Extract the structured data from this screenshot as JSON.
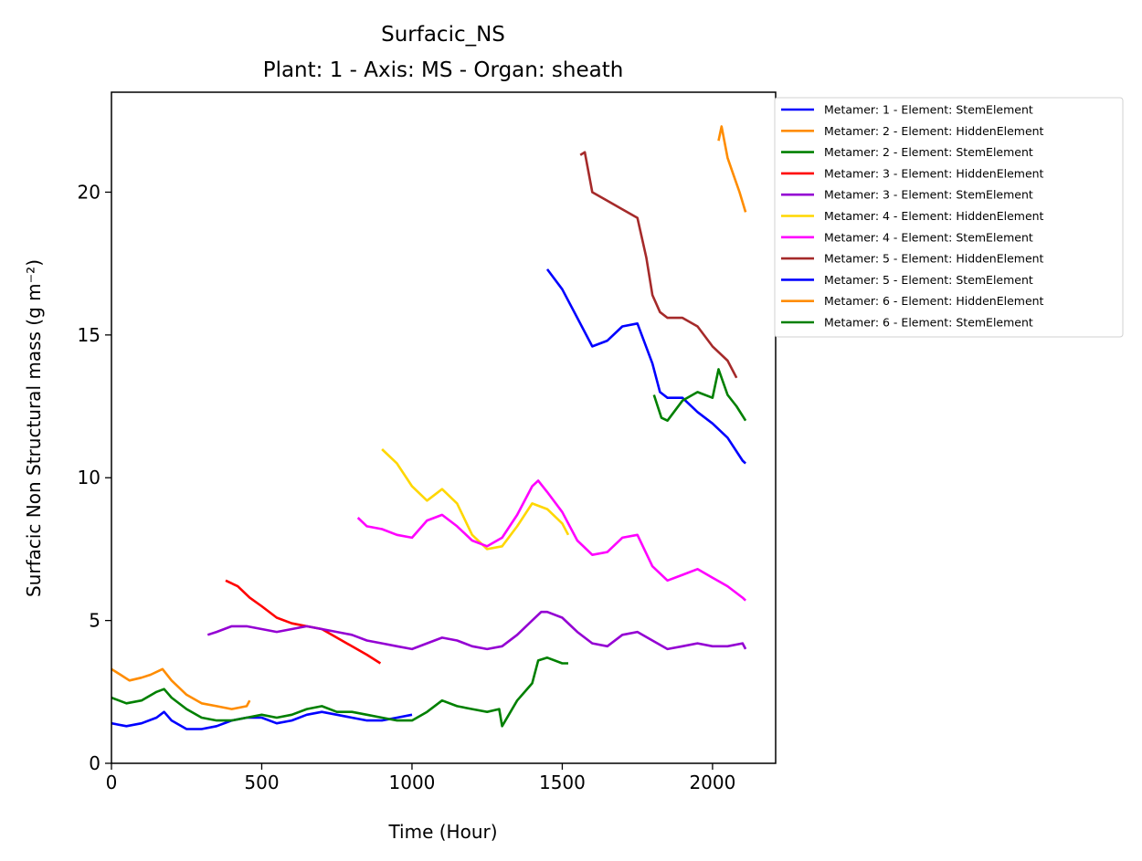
{
  "chart_data": {
    "type": "line",
    "title": "Surfacic_NS",
    "subtitle": "Plant: 1 - Axis: MS - Organ: sheath",
    "xlabel": "Time (Hour)",
    "ylabel": "Surfacic Non Structural mass (g m⁻²)",
    "xlim": [
      0,
      2210
    ],
    "ylim": [
      0,
      23.5
    ],
    "xticks": [
      0,
      500,
      1000,
      1500,
      2000
    ],
    "yticks": [
      0,
      5,
      10,
      15,
      20
    ],
    "grid": false,
    "legend_position": "outside-top-right",
    "series": [
      {
        "name": "Metamer: 1 - Element: StemElement",
        "color": "#0000ff",
        "x": [
          0,
          50,
          100,
          150,
          175,
          200,
          250,
          300,
          350,
          400,
          450,
          500,
          550,
          600,
          650,
          700,
          750,
          800,
          850,
          900,
          950,
          1000
        ],
        "y": [
          1.4,
          1.3,
          1.4,
          1.6,
          1.8,
          1.5,
          1.2,
          1.2,
          1.3,
          1.5,
          1.6,
          1.6,
          1.4,
          1.5,
          1.7,
          1.8,
          1.7,
          1.6,
          1.5,
          1.5,
          1.6,
          1.7
        ]
      },
      {
        "name": "Metamer: 2 - Element: HiddenElement",
        "color": "#ff8c00",
        "x": [
          0,
          30,
          60,
          100,
          130,
          170,
          200,
          250,
          300,
          350,
          400,
          450,
          460
        ],
        "y": [
          3.3,
          3.1,
          2.9,
          3.0,
          3.1,
          3.3,
          2.9,
          2.4,
          2.1,
          2.0,
          1.9,
          2.0,
          2.2
        ]
      },
      {
        "name": "Metamer: 2 - Element: StemElement",
        "color": "#008000",
        "x": [
          0,
          50,
          100,
          150,
          175,
          200,
          250,
          300,
          350,
          400,
          450,
          500,
          550,
          600,
          650,
          700,
          750,
          800,
          850,
          900,
          950,
          1000,
          1050,
          1100,
          1150,
          1200,
          1250,
          1290,
          1300,
          1350,
          1400,
          1420,
          1450,
          1500,
          1520
        ],
        "y": [
          2.3,
          2.1,
          2.2,
          2.5,
          2.6,
          2.3,
          1.9,
          1.6,
          1.5,
          1.5,
          1.6,
          1.7,
          1.6,
          1.7,
          1.9,
          2.0,
          1.8,
          1.8,
          1.7,
          1.6,
          1.5,
          1.5,
          1.8,
          2.2,
          2.0,
          1.9,
          1.8,
          1.9,
          1.3,
          2.2,
          2.8,
          3.6,
          3.7,
          3.5,
          3.5
        ]
      },
      {
        "name": "Metamer: 3 - Element: HiddenElement",
        "color": "#ff0000",
        "x": [
          380,
          420,
          460,
          500,
          550,
          600,
          650,
          700,
          750,
          800,
          850,
          895
        ],
        "y": [
          6.4,
          6.2,
          5.8,
          5.5,
          5.1,
          4.9,
          4.8,
          4.7,
          4.4,
          4.1,
          3.8,
          3.5
        ]
      },
      {
        "name": "Metamer: 3 - Element: StemElement",
        "color": "#9400d3",
        "x": [
          320,
          350,
          400,
          450,
          500,
          550,
          600,
          650,
          700,
          750,
          800,
          850,
          900,
          950,
          1000,
          1050,
          1100,
          1150,
          1200,
          1250,
          1300,
          1350,
          1400,
          1430,
          1450,
          1500,
          1550,
          1600,
          1650,
          1700,
          1750,
          1800,
          1850,
          1900,
          1950,
          2000,
          2050,
          2100,
          2110
        ],
        "y": [
          4.5,
          4.6,
          4.8,
          4.8,
          4.7,
          4.6,
          4.7,
          4.8,
          4.7,
          4.6,
          4.5,
          4.3,
          4.2,
          4.1,
          4.0,
          4.2,
          4.4,
          4.3,
          4.1,
          4.0,
          4.1,
          4.5,
          5.0,
          5.3,
          5.3,
          5.1,
          4.6,
          4.2,
          4.1,
          4.5,
          4.6,
          4.3,
          4.0,
          4.1,
          4.2,
          4.1,
          4.1,
          4.2,
          4.0
        ]
      },
      {
        "name": "Metamer: 4 - Element: HiddenElement",
        "color": "#ffd700",
        "x": [
          900,
          950,
          1000,
          1050,
          1100,
          1150,
          1200,
          1250,
          1300,
          1350,
          1400,
          1450,
          1500,
          1520
        ],
        "y": [
          11.0,
          10.5,
          9.7,
          9.2,
          9.6,
          9.1,
          8.0,
          7.5,
          7.6,
          8.3,
          9.1,
          8.9,
          8.4,
          8.0
        ]
      },
      {
        "name": "Metamer: 4 - Element: StemElement",
        "color": "#ff00ff",
        "x": [
          820,
          850,
          900,
          950,
          1000,
          1050,
          1100,
          1150,
          1200,
          1250,
          1300,
          1350,
          1400,
          1420,
          1450,
          1500,
          1550,
          1600,
          1650,
          1700,
          1750,
          1800,
          1850,
          1900,
          1950,
          2000,
          2050,
          2100,
          2110
        ],
        "y": [
          8.6,
          8.3,
          8.2,
          8.0,
          7.9,
          8.5,
          8.7,
          8.3,
          7.8,
          7.6,
          7.9,
          8.7,
          9.7,
          9.9,
          9.5,
          8.8,
          7.8,
          7.3,
          7.4,
          7.9,
          8.0,
          6.9,
          6.4,
          6.6,
          6.8,
          6.5,
          6.2,
          5.8,
          5.7
        ]
      },
      {
        "name": "Metamer: 5 - Element: HiddenElement",
        "color": "#a52a2a",
        "x": [
          1560,
          1575,
          1600,
          1650,
          1700,
          1750,
          1780,
          1800,
          1825,
          1850,
          1900,
          1950,
          2000,
          2050,
          2080
        ],
        "y": [
          21.3,
          21.4,
          20.0,
          19.7,
          19.4,
          19.1,
          17.7,
          16.4,
          15.8,
          15.6,
          15.6,
          15.3,
          14.6,
          14.1,
          13.5
        ]
      },
      {
        "name": "Metamer: 5 - Element: StemElement",
        "color": "#0000ff",
        "x": [
          1450,
          1500,
          1550,
          1600,
          1650,
          1700,
          1750,
          1775,
          1800,
          1825,
          1850,
          1900,
          1950,
          2000,
          2050,
          2100,
          2110
        ],
        "y": [
          17.3,
          16.6,
          15.6,
          14.6,
          14.8,
          15.3,
          15.4,
          14.7,
          14.0,
          13.0,
          12.8,
          12.8,
          12.3,
          11.9,
          11.4,
          10.6,
          10.5
        ]
      },
      {
        "name": "Metamer: 6 - Element: HiddenElement",
        "color": "#ff8c00",
        "x": [
          2020,
          2030,
          2050,
          2070,
          2090,
          2110
        ],
        "y": [
          21.8,
          22.3,
          21.2,
          20.6,
          20.0,
          19.3
        ]
      },
      {
        "name": "Metamer: 6 - Element: StemElement",
        "color": "#008000",
        "x": [
          1805,
          1830,
          1850,
          1900,
          1950,
          2000,
          2020,
          2050,
          2080,
          2110
        ],
        "y": [
          12.9,
          12.1,
          12.0,
          12.7,
          13.0,
          12.8,
          13.8,
          12.9,
          12.5,
          12.0
        ]
      }
    ]
  }
}
